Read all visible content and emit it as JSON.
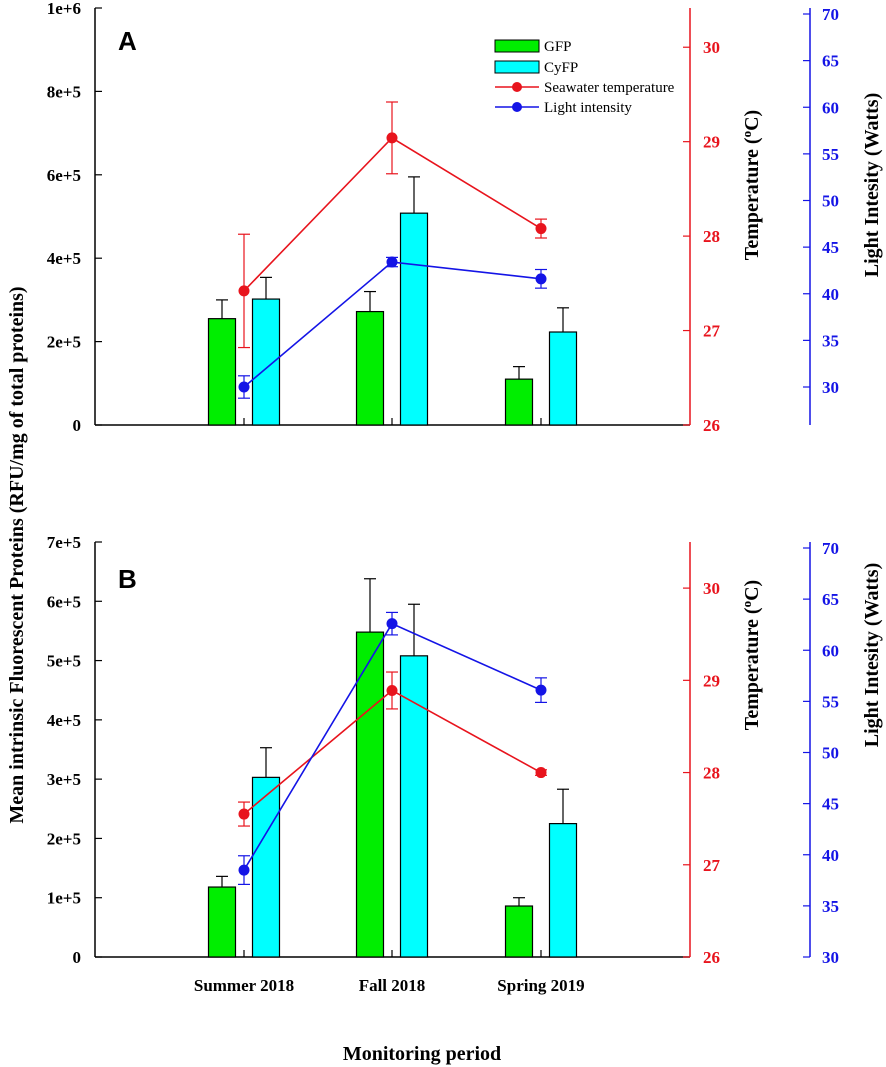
{
  "colors": {
    "gfp": "#00ee00",
    "cyfp": "#00ffff",
    "temp": "#e8141d",
    "light": "#1414e6",
    "axis": "#000000"
  },
  "labels": {
    "y_left": "Mean intrinsic Fluorescent Proteins (RFU/mg of total proteins)",
    "y_temp": "Temperature (",
    "y_temp_sup": "o",
    "y_temp_end": "C)",
    "y_light": "Light Intesity (Watts)",
    "x": "Monitoring period"
  },
  "legend": {
    "gfp": "GFP",
    "cyfp": "CyFP",
    "temp": "Seawater temperature",
    "light": "Light intensity"
  },
  "chart_data": [
    {
      "type": "bar",
      "panel": "A",
      "categories": [
        "Summer 2018",
        "Fall 2018",
        "Spring 2019"
      ],
      "left_axis": {
        "ylim": [
          0,
          1000000
        ],
        "ticks": [
          "0",
          "2e+5",
          "4e+5",
          "6e+5",
          "8e+5",
          "1e+6"
        ],
        "tick_values": [
          0,
          200000,
          400000,
          600000,
          800000,
          1000000
        ]
      },
      "temp_axis": {
        "ylim": [
          26,
          30.5
        ],
        "ticks": [
          "26",
          "27",
          "28",
          "29",
          "30"
        ],
        "tick_values": [
          26,
          27,
          28,
          29,
          30
        ]
      },
      "light_axis": {
        "ylim": [
          25.5,
          70
        ],
        "ticks": [
          "30",
          "35",
          "40",
          "45",
          "50",
          "55",
          "60",
          "65",
          "70"
        ],
        "tick_values": [
          30,
          35,
          40,
          45,
          50,
          55,
          60,
          65,
          70
        ]
      },
      "series": [
        {
          "name": "GFP",
          "kind": "bar",
          "values": [
            255000,
            272000,
            110000
          ],
          "errors": [
            45000,
            48000,
            30000
          ]
        },
        {
          "name": "CyFP",
          "kind": "bar",
          "values": [
            302000,
            508000,
            223000
          ],
          "errors": [
            52000,
            87000,
            58000
          ]
        },
        {
          "name": "Seawater temperature",
          "kind": "line",
          "axis": "temp",
          "values": [
            27.42,
            29.04,
            28.08
          ],
          "errors": [
            0.6,
            0.38,
            0.1
          ]
        },
        {
          "name": "Light intensity",
          "kind": "line",
          "axis": "light",
          "values": [
            30.0,
            43.4,
            41.6
          ],
          "errors": [
            1.2,
            0.5,
            1.0
          ]
        }
      ]
    },
    {
      "type": "bar",
      "panel": "B",
      "categories": [
        "Summer 2018",
        "Fall 2018",
        "Spring 2019"
      ],
      "left_axis": {
        "ylim": [
          0,
          700000
        ],
        "ticks": [
          "0",
          "1e+5",
          "2e+5",
          "3e+5",
          "4e+5",
          "5e+5",
          "6e+5",
          "7e+5"
        ],
        "tick_values": [
          0,
          100000,
          200000,
          300000,
          400000,
          500000,
          600000,
          700000
        ]
      },
      "temp_axis": {
        "ylim": [
          26,
          30.5
        ],
        "ticks": [
          "26",
          "27",
          "28",
          "29",
          "30"
        ],
        "tick_values": [
          26,
          27,
          28,
          29,
          30
        ]
      },
      "light_axis": {
        "ylim": [
          30,
          70
        ],
        "ticks": [
          "30",
          "35",
          "40",
          "45",
          "50",
          "55",
          "60",
          "65",
          "70"
        ],
        "tick_values": [
          30,
          35,
          40,
          45,
          50,
          55,
          60,
          65,
          70
        ]
      },
      "series": [
        {
          "name": "GFP",
          "kind": "bar",
          "values": [
            118000,
            548000,
            86000
          ],
          "errors": [
            18000,
            90000,
            14000
          ]
        },
        {
          "name": "CyFP",
          "kind": "bar",
          "values": [
            303000,
            508000,
            225000
          ],
          "errors": [
            50000,
            87000,
            58000
          ]
        },
        {
          "name": "Seawater temperature",
          "kind": "line",
          "axis": "temp",
          "values": [
            27.55,
            28.89,
            28.0
          ],
          "errors": [
            0.13,
            0.2,
            0.03
          ]
        },
        {
          "name": "Light intensity",
          "kind": "line",
          "axis": "light",
          "values": [
            38.5,
            62.6,
            56.1
          ],
          "errors": [
            1.4,
            1.1,
            1.2
          ]
        }
      ]
    }
  ]
}
